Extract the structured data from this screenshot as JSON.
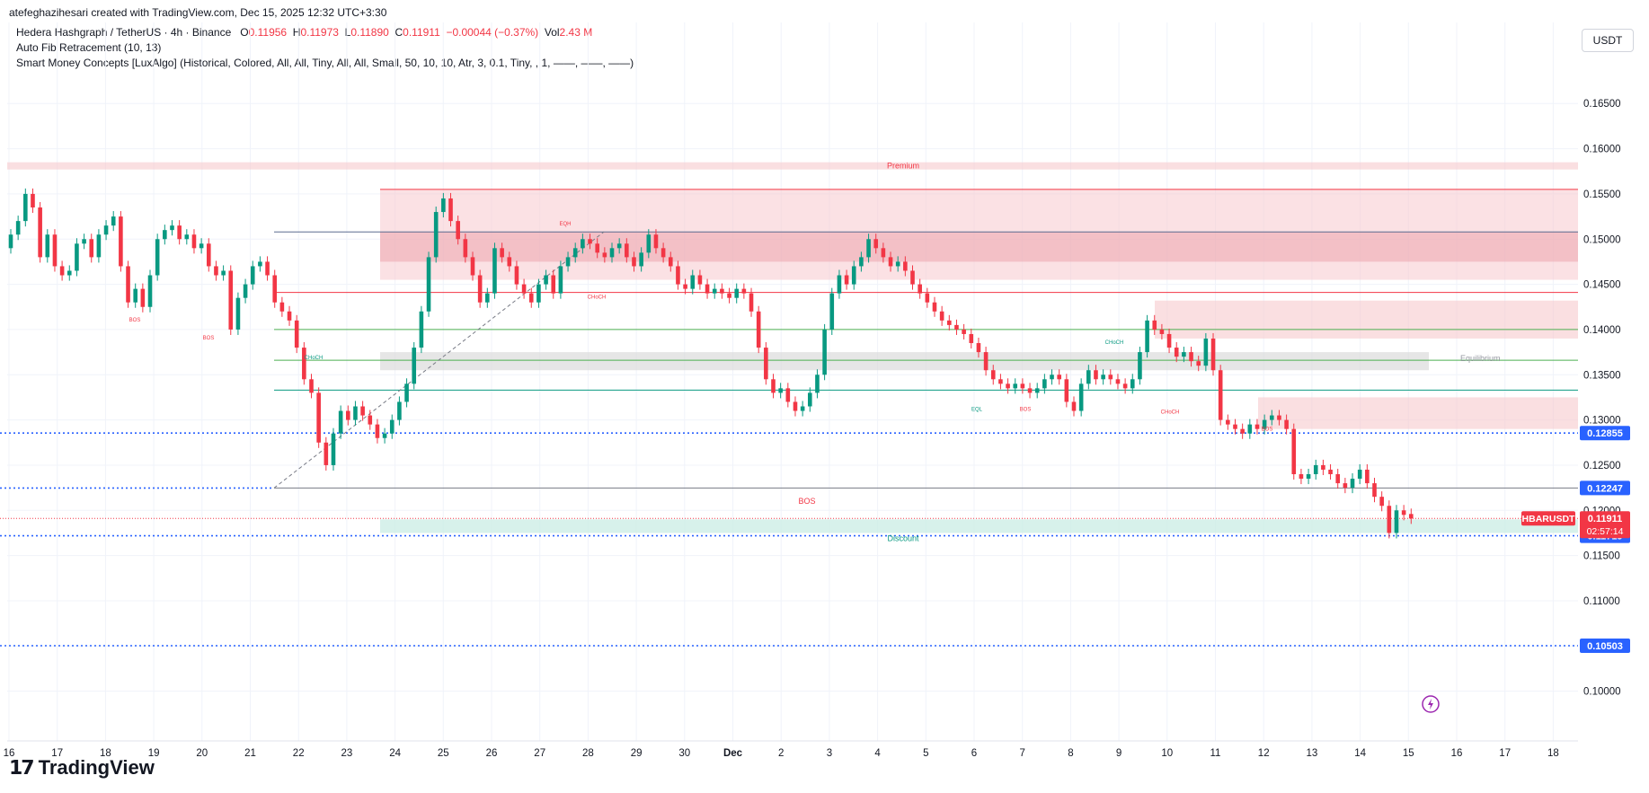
{
  "header": {
    "credit": "atefeghazihesari created with TradingView.com, Dec 15, 2025 12:32 UTC+3:30",
    "symbol_line": "Hedera Hashgraph / TetherUS · 4h · Binance",
    "o_label": "O",
    "o_value": "0.11956",
    "h_label": "H",
    "h_value": "0.11973",
    "l_label": "L",
    "l_value": "0.11890",
    "c_label": "C",
    "c_value": "0.11911",
    "change": "−0.00044 (−0.37%)",
    "vol_label": "Vol",
    "vol_value": "2.43 M",
    "indicator1": "Auto Fib Retracement (10, 13)",
    "indicator2": "Smart Money Concepts [LuxAlgo] (Historical, Colored, All, All, Tiny, All, All, Small, 50, 10, 10, Atr, 3, 0.1, Tiny, , 1, ——, ——, ——)"
  },
  "currency_button": "USDT",
  "brand": "TradingView",
  "chart_data": {
    "type": "candlestick",
    "symbol": "HBARUSDT",
    "last_price": "0.11911",
    "countdown": "02:57:14",
    "ylim": [
      0.0945,
      0.1685
    ],
    "y_ticks": [
      "0.16500",
      "0.16000",
      "0.15500",
      "0.15000",
      "0.14500",
      "0.14000",
      "0.13500",
      "0.13000",
      "0.12500",
      "0.12000",
      "0.11500",
      "0.11000",
      "0.10500",
      "0.10000"
    ],
    "x_ticks": [
      "16",
      "17",
      "18",
      "19",
      "20",
      "21",
      "22",
      "23",
      "24",
      "25",
      "26",
      "27",
      "28",
      "29",
      "30",
      "Dec",
      "2",
      "3",
      "4",
      "5",
      "6",
      "7",
      "8",
      "9",
      "10",
      "11",
      "12",
      "13",
      "14",
      "15",
      "16",
      "17",
      "18"
    ],
    "price_labels": [
      {
        "text": "0.12855",
        "value": 0.12855
      },
      {
        "text": "0.12247",
        "value": 0.12247
      },
      {
        "text": "0.11719",
        "value": 0.11719
      },
      {
        "text": "0.10503",
        "value": 0.10503
      }
    ],
    "annotations": {
      "premium": "Premium",
      "discount": "Discount",
      "equilibrium": "Equilibrium",
      "bos": "BOS",
      "choch": "CHoCH",
      "eqh": "EQH",
      "eql": "EQL"
    },
    "candle_closes": [
      0.1505,
      0.152,
      0.155,
      0.1535,
      0.148,
      0.1505,
      0.147,
      0.146,
      0.1465,
      0.1495,
      0.15,
      0.148,
      0.1505,
      0.1515,
      0.1525,
      0.147,
      0.143,
      0.1445,
      0.1425,
      0.146,
      0.15,
      0.151,
      0.1515,
      0.15,
      0.1505,
      0.149,
      0.1495,
      0.147,
      0.146,
      0.1465,
      0.14,
      0.1435,
      0.145,
      0.147,
      0.1475,
      0.146,
      0.143,
      0.142,
      0.141,
      0.138,
      0.1345,
      0.133,
      0.1275,
      0.125,
      0.1285,
      0.131,
      0.13,
      0.1315,
      0.1305,
      0.1295,
      0.128,
      0.1285,
      0.13,
      0.132,
      0.134,
      0.138,
      0.142,
      0.148,
      0.153,
      0.1545,
      0.152,
      0.15,
      0.148,
      0.146,
      0.143,
      0.144,
      0.149,
      0.148,
      0.147,
      0.145,
      0.144,
      0.143,
      0.145,
      0.146,
      0.144,
      0.147,
      0.148,
      0.149,
      0.15,
      0.1495,
      0.1485,
      0.148,
      0.149,
      0.1495,
      0.148,
      0.147,
      0.1485,
      0.1505,
      0.149,
      0.148,
      0.147,
      0.145,
      0.1445,
      0.146,
      0.145,
      0.144,
      0.1445,
      0.144,
      0.1435,
      0.1445,
      0.144,
      0.142,
      0.138,
      0.1345,
      0.133,
      0.1335,
      0.132,
      0.131,
      0.1315,
      0.133,
      0.135,
      0.14,
      0.144,
      0.146,
      0.145,
      0.147,
      0.148,
      0.15,
      0.149,
      0.148,
      0.147,
      0.1475,
      0.1465,
      0.145,
      0.144,
      0.143,
      0.142,
      0.141,
      0.1405,
      0.14,
      0.1395,
      0.1385,
      0.1375,
      0.1355,
      0.1345,
      0.134,
      0.1335,
      0.134,
      0.1335,
      0.133,
      0.1335,
      0.1345,
      0.135,
      0.1345,
      0.132,
      0.131,
      0.134,
      0.1355,
      0.1345,
      0.135,
      0.1345,
      0.134,
      0.1335,
      0.1345,
      0.1375,
      0.141,
      0.14,
      0.1395,
      0.138,
      0.137,
      0.1375,
      0.1365,
      0.136,
      0.139,
      0.1355,
      0.13,
      0.1295,
      0.129,
      0.1285,
      0.1295,
      0.129,
      0.13,
      0.1305,
      0.13,
      0.129,
      0.124,
      0.1235,
      0.124,
      0.125,
      0.1245,
      0.124,
      0.123,
      0.1225,
      0.1235,
      0.1245,
      0.123,
      0.1215,
      0.1205,
      0.1175,
      0.12,
      0.1195,
      0.1191
    ],
    "candle_opens": [
      0.149,
      0.1505,
      0.152,
      0.155,
      0.1535,
      0.148,
      0.1505,
      0.147,
      0.146,
      0.1465,
      0.1495,
      0.15,
      0.148,
      0.1505,
      0.1515,
      0.1525,
      0.147,
      0.143,
      0.1445,
      0.1425,
      0.146,
      0.15,
      0.151,
      0.1515,
      0.15,
      0.1505,
      0.149,
      0.1495,
      0.147,
      0.146,
      0.1465,
      0.14,
      0.1435,
      0.145,
      0.147,
      0.1475,
      0.146,
      0.143,
      0.142,
      0.141,
      0.138,
      0.1345,
      0.133,
      0.1275,
      0.125,
      0.1285,
      0.131,
      0.13,
      0.1315,
      0.1305,
      0.1295,
      0.128,
      0.1285,
      0.13,
      0.132,
      0.134,
      0.138,
      0.142,
      0.148,
      0.153,
      0.1545,
      0.152,
      0.15,
      0.148,
      0.146,
      0.143,
      0.144,
      0.149,
      0.148,
      0.147,
      0.145,
      0.144,
      0.143,
      0.145,
      0.146,
      0.144,
      0.147,
      0.148,
      0.149,
      0.15,
      0.1495,
      0.1485,
      0.148,
      0.149,
      0.1495,
      0.148,
      0.147,
      0.1485,
      0.1505,
      0.149,
      0.148,
      0.147,
      0.145,
      0.1445,
      0.146,
      0.145,
      0.144,
      0.1445,
      0.144,
      0.1435,
      0.1445,
      0.144,
      0.142,
      0.138,
      0.1345,
      0.133,
      0.1335,
      0.132,
      0.131,
      0.1315,
      0.133,
      0.135,
      0.14,
      0.144,
      0.146,
      0.145,
      0.147,
      0.148,
      0.15,
      0.149,
      0.148,
      0.147,
      0.1475,
      0.1465,
      0.145,
      0.144,
      0.143,
      0.142,
      0.141,
      0.1405,
      0.14,
      0.1395,
      0.1385,
      0.1375,
      0.1355,
      0.1345,
      0.134,
      0.1335,
      0.134,
      0.1335,
      0.133,
      0.1335,
      0.1345,
      0.135,
      0.1345,
      0.132,
      0.131,
      0.134,
      0.1355,
      0.1345,
      0.135,
      0.1345,
      0.134,
      0.1335,
      0.1345,
      0.1375,
      0.141,
      0.14,
      0.1395,
      0.138,
      0.137,
      0.1375,
      0.1365,
      0.136,
      0.139,
      0.1355,
      0.13,
      0.1295,
      0.129,
      0.1285,
      0.1295,
      0.129,
      0.13,
      0.1305,
      0.13,
      0.129,
      0.124,
      0.1235,
      0.124,
      0.125,
      0.1245,
      0.124,
      0.123,
      0.1225,
      0.1235,
      0.1245,
      0.123,
      0.1215,
      0.1205,
      0.1175,
      0.12,
      0.1196
    ],
    "colors": {
      "up": "#089981",
      "down": "#f23645",
      "premium_zone": "#f7c9cd",
      "discount_zone": "#cdeee6",
      "equilibrium_zone": "#d9d9d9",
      "fib_blue": "#2962ff",
      "grid": "#f0f3fa"
    }
  }
}
